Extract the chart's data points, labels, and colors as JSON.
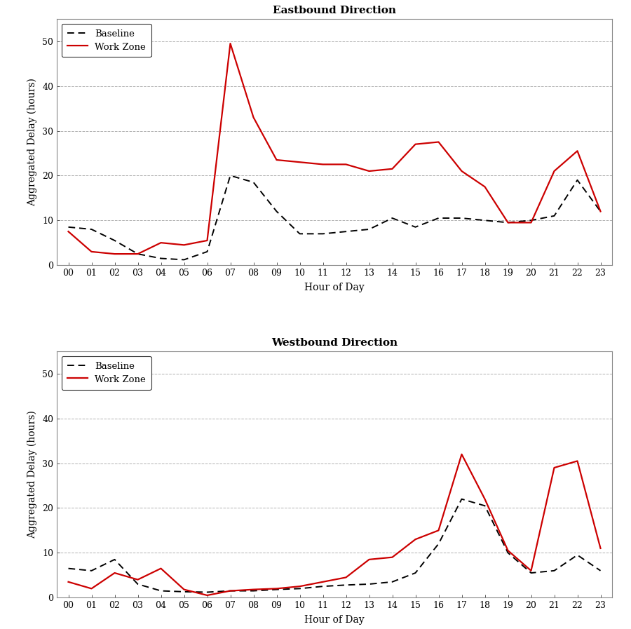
{
  "hours": [
    0,
    1,
    2,
    3,
    4,
    5,
    6,
    7,
    8,
    9,
    10,
    11,
    12,
    13,
    14,
    15,
    16,
    17,
    18,
    19,
    20,
    21,
    22,
    23
  ],
  "hour_labels": [
    "00",
    "01",
    "02",
    "03",
    "04",
    "05",
    "06",
    "07",
    "08",
    "09",
    "10",
    "11",
    "12",
    "13",
    "14",
    "15",
    "16",
    "17",
    "18",
    "19",
    "20",
    "21",
    "22",
    "23"
  ],
  "eb_baseline": [
    8.5,
    8.0,
    5.5,
    2.5,
    1.5,
    1.2,
    3.0,
    20.0,
    18.5,
    12.0,
    7.0,
    7.0,
    7.5,
    8.0,
    10.5,
    8.5,
    10.5,
    10.5,
    10.0,
    9.5,
    10.0,
    11.0,
    19.0,
    12.0
  ],
  "eb_workzone": [
    7.5,
    3.0,
    2.5,
    2.5,
    5.0,
    4.5,
    5.5,
    49.5,
    33.0,
    23.5,
    23.0,
    22.5,
    22.5,
    21.0,
    21.5,
    27.0,
    27.5,
    21.0,
    17.5,
    9.5,
    9.5,
    21.0,
    25.5,
    12.0
  ],
  "wb_baseline": [
    6.5,
    6.0,
    8.5,
    3.0,
    1.5,
    1.3,
    1.2,
    1.5,
    1.5,
    1.8,
    2.0,
    2.5,
    2.8,
    3.0,
    3.5,
    5.5,
    12.0,
    22.0,
    20.5,
    10.0,
    5.5,
    6.0,
    9.5,
    6.0
  ],
  "wb_workzone": [
    3.5,
    2.0,
    5.5,
    4.0,
    6.5,
    1.8,
    0.5,
    1.5,
    1.8,
    2.0,
    2.5,
    3.5,
    4.5,
    8.5,
    9.0,
    13.0,
    15.0,
    32.0,
    22.0,
    10.5,
    6.0,
    29.0,
    30.5,
    11.0
  ],
  "title_eb": "Eastbound Direction",
  "title_wb": "Westbound Direction",
  "ylabel": "Aggregated Delay (hours)",
  "xlabel": "Hour of Day",
  "legend_baseline": "Baseline",
  "legend_workzone": "Work Zone",
  "baseline_color": "#000000",
  "workzone_color": "#cc0000",
  "ylim": [
    0,
    55
  ],
  "yticks": [
    0,
    10,
    20,
    30,
    40,
    50
  ],
  "grid_color": "#b0b0b0",
  "background_color": "#ffffff",
  "plot_bg": "#ffffff"
}
